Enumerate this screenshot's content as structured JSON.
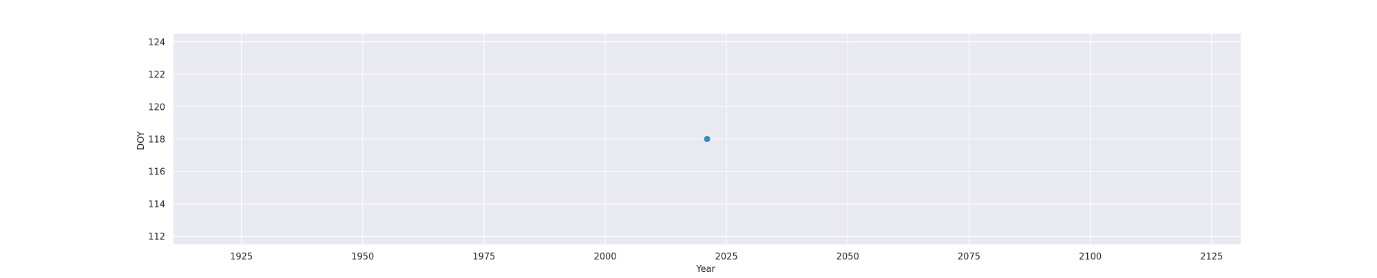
{
  "chart_data": {
    "type": "scatter",
    "title": "",
    "xlabel": "Year",
    "ylabel": "DOY",
    "xlim": [
      1911,
      2131
    ],
    "ylim": [
      111.5,
      124.5
    ],
    "x_ticks": [
      1925,
      1950,
      1975,
      2000,
      2025,
      2050,
      2075,
      2100,
      2125
    ],
    "y_ticks": [
      112,
      114,
      116,
      118,
      120,
      122,
      124
    ],
    "grid": true,
    "legend": "none",
    "series": [
      {
        "color": "#3b86bd",
        "points": [
          {
            "x": 2021,
            "y": 118
          }
        ]
      }
    ]
  },
  "colors": {
    "plot_background": "#e9e9f1",
    "grid": "#ffffff"
  }
}
